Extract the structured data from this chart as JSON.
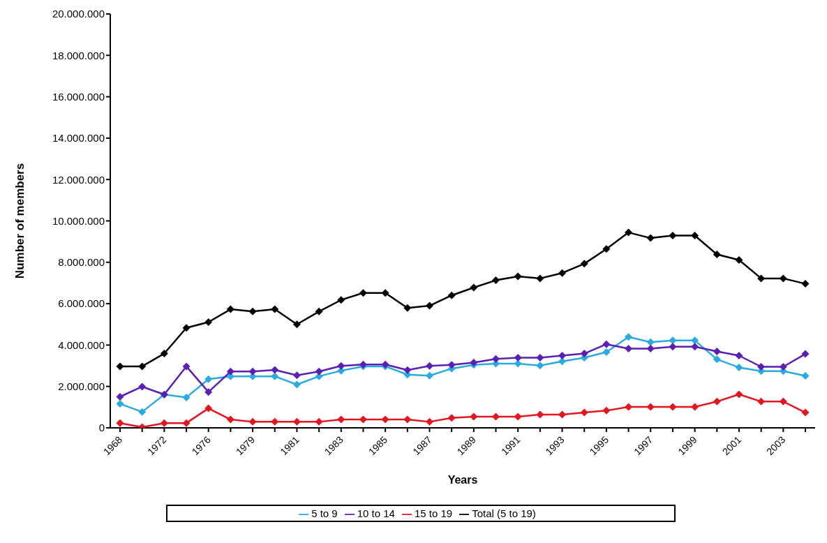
{
  "chart_data": {
    "type": "line",
    "xlabel": "Years",
    "ylabel": "Number of members",
    "categories": [
      "1968",
      null,
      "1972",
      null,
      "1976",
      null,
      "1979",
      null,
      "1981",
      null,
      "1983",
      null,
      "1985",
      null,
      "1987",
      null,
      "1989",
      null,
      "1991",
      null,
      "1993",
      null,
      "1995",
      null,
      "1997",
      null,
      "1999",
      null,
      "2001",
      null,
      "2003",
      null
    ],
    "series": [
      {
        "name": "5 to 9",
        "color": "#29abe2",
        "values": [
          1160000,
          770000,
          1610000,
          1470000,
          2350000,
          2490000,
          2490000,
          2490000,
          2090000,
          2490000,
          2760000,
          2970000,
          2970000,
          2570000,
          2520000,
          2860000,
          3040000,
          3100000,
          3100000,
          3010000,
          3210000,
          3390000,
          3660000,
          4390000,
          4140000,
          4220000,
          4220000,
          3310000,
          2920000,
          2740000,
          2740000,
          2510000
        ]
      },
      {
        "name": "10 to 14",
        "color": "#5b1fb5",
        "values": [
          1500000,
          1990000,
          1610000,
          2970000,
          1730000,
          2720000,
          2720000,
          2800000,
          2540000,
          2720000,
          2990000,
          3060000,
          3060000,
          2790000,
          2990000,
          3040000,
          3150000,
          3330000,
          3390000,
          3390000,
          3490000,
          3590000,
          4040000,
          3830000,
          3830000,
          3920000,
          3920000,
          3690000,
          3490000,
          2950000,
          2950000,
          3570000
        ]
      },
      {
        "name": "15 to 19",
        "color": "#e3161f",
        "values": [
          230000,
          30000,
          230000,
          230000,
          940000,
          400000,
          290000,
          290000,
          290000,
          290000,
          400000,
          400000,
          400000,
          400000,
          290000,
          480000,
          540000,
          540000,
          540000,
          640000,
          640000,
          740000,
          830000,
          1010000,
          1010000,
          1010000,
          1010000,
          1270000,
          1620000,
          1270000,
          1270000,
          740000
        ]
      },
      {
        "name": "Total (5 to 19)",
        "color": "#000000",
        "values": [
          2970000,
          2970000,
          3590000,
          4830000,
          5110000,
          5730000,
          5620000,
          5730000,
          5000000,
          5620000,
          6180000,
          6520000,
          6520000,
          5790000,
          5900000,
          6400000,
          6780000,
          7130000,
          7320000,
          7220000,
          7480000,
          7930000,
          8640000,
          9440000,
          9170000,
          9290000,
          9290000,
          8380000,
          8110000,
          7220000,
          7220000,
          6960000
        ]
      }
    ],
    "ylim": [
      0,
      20000000
    ],
    "yticks": [
      0,
      {
        "value": 2000000,
        "label": "2.000.000"
      },
      {
        "value": 4000000,
        "label": "4.000.000"
      },
      {
        "value": 6000000,
        "label": "6.000.000"
      },
      {
        "value": 8000000,
        "label": "8.000.000"
      },
      {
        "value": 10000000,
        "label": "10.000.000"
      },
      {
        "value": 12000000,
        "label": "12.000.000"
      },
      {
        "value": 14000000,
        "label": "14.000.000"
      },
      {
        "value": 16000000,
        "label": "16.000.000"
      },
      {
        "value": 18000000,
        "label": "18.000.000"
      },
      {
        "value": 20000000,
        "label": "20.000.000"
      }
    ],
    "grid": false,
    "legend": "bottom",
    "marker": "diamond",
    "line_style": "solid"
  }
}
